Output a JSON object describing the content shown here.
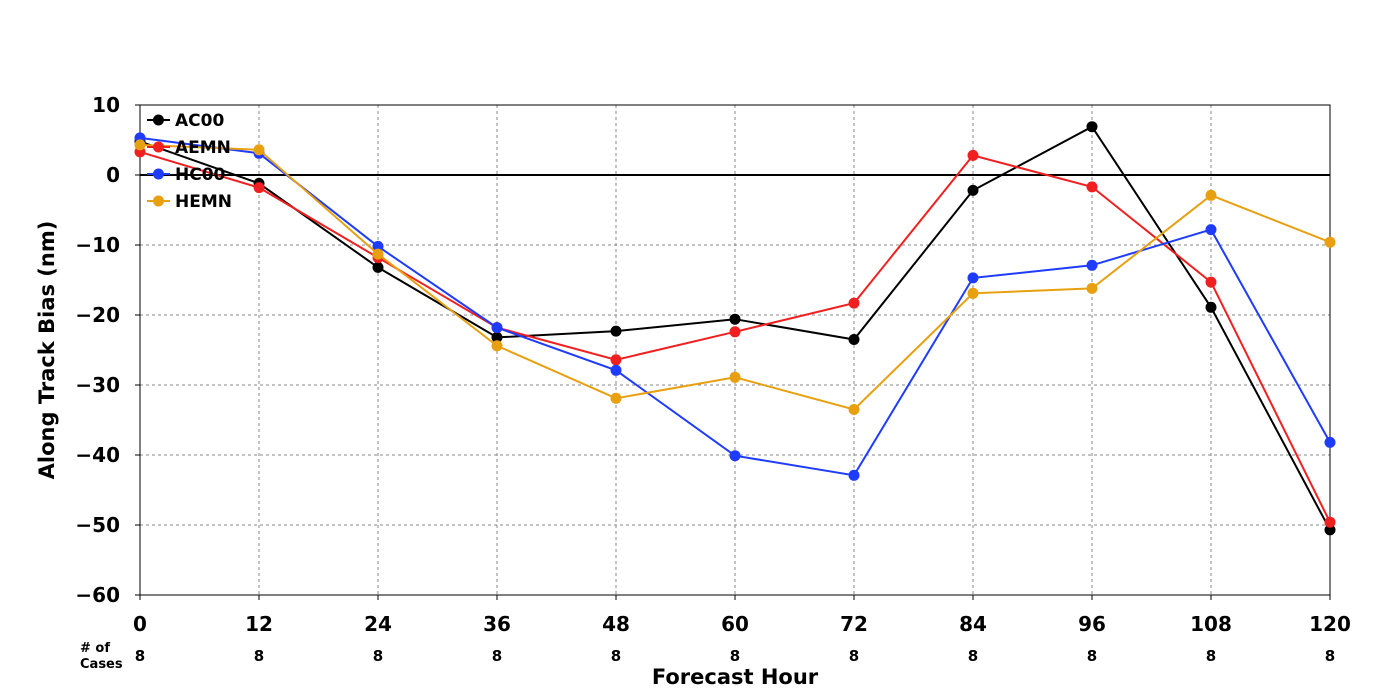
{
  "chart_data": {
    "type": "line",
    "xlabel": "Forecast Hour",
    "ylabel": "Along Track Bias (nm)",
    "x": [
      0,
      12,
      24,
      36,
      48,
      60,
      72,
      84,
      96,
      108,
      120
    ],
    "xlim": [
      0,
      120
    ],
    "ylim": [
      -60,
      10
    ],
    "yticks": [
      10,
      0,
      -10,
      -20,
      -30,
      -40,
      -50,
      -60
    ],
    "ytick_labels": [
      "10",
      "0",
      "−10",
      "−20",
      "−30",
      "−40",
      "−50",
      "−60"
    ],
    "grid": true,
    "legend_position": "top-left",
    "cases_label": [
      "# of",
      "Cases"
    ],
    "cases": [
      8,
      8,
      8,
      8,
      8,
      8,
      8,
      8,
      8,
      8,
      8
    ],
    "series": [
      {
        "name": "AC00",
        "color": "#000000",
        "values": [
          4.8,
          -1.2,
          -13.2,
          -23.2,
          -22.3,
          -20.6,
          -23.5,
          -2.2,
          6.9,
          -18.9,
          -50.7
        ]
      },
      {
        "name": "AEMN",
        "color": "#f02020",
        "values": [
          3.3,
          -1.8,
          -11.8,
          -21.8,
          -26.4,
          -22.4,
          -18.3,
          2.8,
          -1.7,
          -15.3,
          -49.6
        ]
      },
      {
        "name": "HC00",
        "color": "#1e3cff",
        "values": [
          5.3,
          3.1,
          -10.2,
          -21.8,
          -27.9,
          -40.1,
          -42.9,
          -14.7,
          -12.9,
          -7.8,
          -38.2
        ]
      },
      {
        "name": "HEMN",
        "color": "#e8a010",
        "values": [
          4.3,
          3.6,
          -11.3,
          -24.4,
          -31.9,
          -28.9,
          -33.5,
          -16.9,
          -16.2,
          -2.9,
          -9.6
        ]
      }
    ]
  }
}
